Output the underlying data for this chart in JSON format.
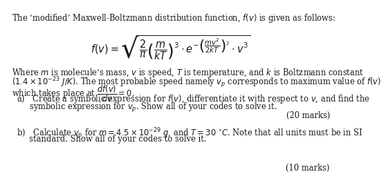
{
  "title_line": "The ‘modified’ Maxwell-Boltzmann distribution function, $f(v)$ is given as follows:",
  "formula": "$f(v) = \\sqrt{\\dfrac{2}{\\pi}\\left(\\dfrac{m}{kT}\\right)^3 \\cdot e^{-\\left(\\dfrac{mv^2}{2kT}\\right)^2} \\cdot v^3}$",
  "para1_line1": "Where $m$ is molecule’s mass, $v$ is speed, $T$ is temperature, and $k$ is Boltzmann constant",
  "para1_line2": "$(1.4 \\times 10^{-23}$ $J/K)$. The most probable speed namely $v_p$ corresponds to maximum value of $f(v)$",
  "para1_line3": "which takes place at $\\dfrac{df(v)}{dv} = 0$.",
  "part_a_intro": "a) Create a symbolic expression for $f(v)$, differentiate it with respect to $v$, and find the",
  "part_a_cont": "     symbolic expression for $v_p$. Show all of your codes to solve it.",
  "marks_a": "(20 marks)",
  "part_b_intro": "b) Calculate $v_p$ for $m = 4.5 \\times 10^{-29}$ $g$, and $T = 30$ $^{\\circ}C$. Note that all units must be in SI",
  "part_b_cont": "     standard. Show all of your codes to solve it.",
  "marks_b": "(10 marks)",
  "bg_color": "#ffffff",
  "text_color": "#1a1a1a",
  "fontsize_body": 8.3,
  "fontsize_formula": 10.5,
  "font_family": "DejaVu Serif"
}
